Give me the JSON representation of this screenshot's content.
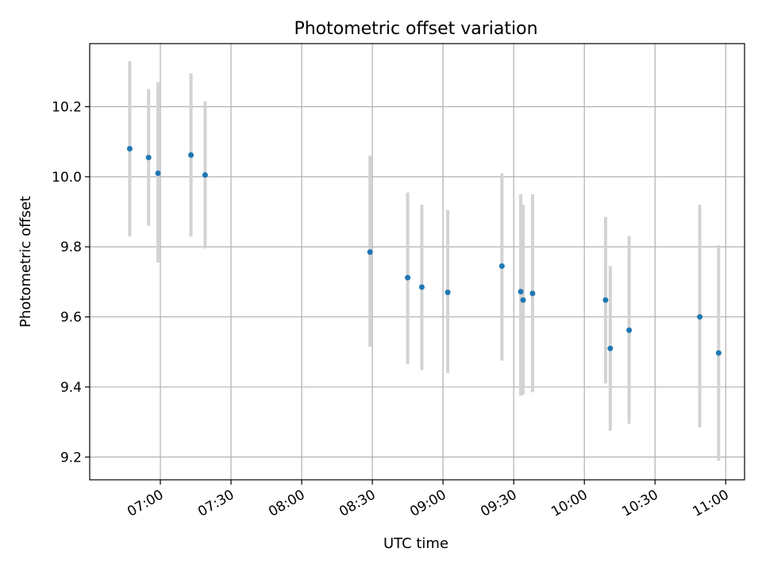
{
  "chart_data": {
    "type": "scatter",
    "title": "Photometric offset variation",
    "xlabel": "UTC time",
    "ylabel": "Photometric offset",
    "xlim": [
      "06:30",
      "11:08"
    ],
    "ylim": [
      9.135,
      10.38
    ],
    "grid": true,
    "x_ticks": [
      "07:00",
      "07:30",
      "08:00",
      "08:30",
      "09:00",
      "09:30",
      "10:00",
      "10:30",
      "11:00"
    ],
    "y_ticks": [
      9.2,
      9.4,
      9.6,
      9.8,
      10.0,
      10.2
    ],
    "y_tick_labels": [
      "9.2",
      "9.4",
      "9.6",
      "9.8",
      "10.0",
      "10.2"
    ],
    "points": [
      {
        "time": "06:47",
        "y": 10.08,
        "lo": 9.83,
        "hi": 10.33
      },
      {
        "time": "06:55",
        "y": 10.055,
        "lo": 9.86,
        "hi": 10.25
      },
      {
        "time": "06:59",
        "y": 10.01,
        "lo": 9.755,
        "hi": 10.27
      },
      {
        "time": "07:13",
        "y": 10.062,
        "lo": 9.83,
        "hi": 10.295
      },
      {
        "time": "07:19",
        "y": 10.005,
        "lo": 9.795,
        "hi": 10.215
      },
      {
        "time": "08:29",
        "y": 9.785,
        "lo": 9.515,
        "hi": 10.06
      },
      {
        "time": "08:45",
        "y": 9.712,
        "lo": 9.465,
        "hi": 9.955
      },
      {
        "time": "08:51",
        "y": 9.685,
        "lo": 9.448,
        "hi": 9.92
      },
      {
        "time": "09:02",
        "y": 9.67,
        "lo": 9.44,
        "hi": 9.905
      },
      {
        "time": "09:25",
        "y": 9.745,
        "lo": 9.475,
        "hi": 10.01
      },
      {
        "time": "09:33",
        "y": 9.672,
        "lo": 9.375,
        "hi": 9.95
      },
      {
        "time": "09:34",
        "y": 9.648,
        "lo": 9.378,
        "hi": 9.92
      },
      {
        "time": "09:38",
        "y": 9.667,
        "lo": 9.385,
        "hi": 9.95
      },
      {
        "time": "10:09",
        "y": 9.648,
        "lo": 9.41,
        "hi": 9.885
      },
      {
        "time": "10:11",
        "y": 9.51,
        "lo": 9.275,
        "hi": 9.745
      },
      {
        "time": "10:19",
        "y": 9.562,
        "lo": 9.295,
        "hi": 9.83
      },
      {
        "time": "10:49",
        "y": 9.6,
        "lo": 9.285,
        "hi": 9.92
      },
      {
        "time": "10:57",
        "y": 9.497,
        "lo": 9.19,
        "hi": 9.805
      }
    ],
    "colors": {
      "points": "#1f77b4",
      "errorbars": "#d3d3d3",
      "grid": "#b0b0b0"
    }
  }
}
